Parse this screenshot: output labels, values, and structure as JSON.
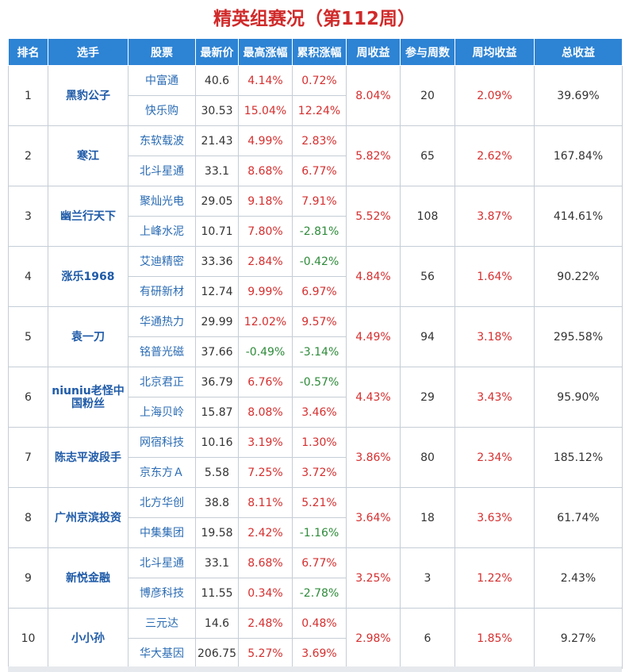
{
  "title": "精英组赛况（第112周）",
  "colors": {
    "header_bg": "#2d83d4",
    "title": "#d02a2a",
    "up": "#d62f2f",
    "down": "#2e8b3a",
    "link": "#2b6cb4"
  },
  "headers": [
    "排名",
    "选手",
    "股票",
    "最新价",
    "最高涨幅",
    "累积涨幅",
    "周收益",
    "参与周数",
    "周均收益",
    "总收益"
  ],
  "rows": [
    {
      "rank": "1",
      "player": "黑豹公子",
      "weekly_return": "8.04%",
      "weeks": "20",
      "avg_weekly": "2.09%",
      "total": "39.69%",
      "stocks": [
        {
          "name": "中富通",
          "price": "40.6",
          "max_gain": "4.14%",
          "cum_gain": "0.72%"
        },
        {
          "name": "快乐购",
          "price": "30.53",
          "max_gain": "15.04%",
          "cum_gain": "12.24%"
        }
      ]
    },
    {
      "rank": "2",
      "player": "寒江",
      "weekly_return": "5.82%",
      "weeks": "65",
      "avg_weekly": "2.62%",
      "total": "167.84%",
      "stocks": [
        {
          "name": "东软载波",
          "price": "21.43",
          "max_gain": "4.99%",
          "cum_gain": "2.83%"
        },
        {
          "name": "北斗星通",
          "price": "33.1",
          "max_gain": "8.68%",
          "cum_gain": "6.77%"
        }
      ]
    },
    {
      "rank": "3",
      "player": "幽兰行天下",
      "weekly_return": "5.52%",
      "weeks": "108",
      "avg_weekly": "3.87%",
      "total": "414.61%",
      "stocks": [
        {
          "name": "聚灿光电",
          "price": "29.05",
          "max_gain": "9.18%",
          "cum_gain": "7.91%"
        },
        {
          "name": "上峰水泥",
          "price": "10.71",
          "max_gain": "7.80%",
          "cum_gain": "-2.81%"
        }
      ]
    },
    {
      "rank": "4",
      "player": "涨乐1968",
      "weekly_return": "4.84%",
      "weeks": "56",
      "avg_weekly": "1.64%",
      "total": "90.22%",
      "stocks": [
        {
          "name": "艾迪精密",
          "price": "33.36",
          "max_gain": "2.84%",
          "cum_gain": "-0.42%"
        },
        {
          "name": "有研新材",
          "price": "12.74",
          "max_gain": "9.99%",
          "cum_gain": "6.97%"
        }
      ]
    },
    {
      "rank": "5",
      "player": "袁一刀",
      "weekly_return": "4.49%",
      "weeks": "94",
      "avg_weekly": "3.18%",
      "total": "295.58%",
      "stocks": [
        {
          "name": "华通热力",
          "price": "29.99",
          "max_gain": "12.02%",
          "cum_gain": "9.57%"
        },
        {
          "name": "铭普光磁",
          "price": "37.66",
          "max_gain": "-0.49%",
          "cum_gain": "-3.14%"
        }
      ]
    },
    {
      "rank": "6",
      "player": "niuniu老怪中国粉丝",
      "weekly_return": "4.43%",
      "weeks": "29",
      "avg_weekly": "3.43%",
      "total": "95.90%",
      "stocks": [
        {
          "name": "北京君正",
          "price": "36.79",
          "max_gain": "6.76%",
          "cum_gain": "-0.57%"
        },
        {
          "name": "上海贝岭",
          "price": "15.87",
          "max_gain": "8.08%",
          "cum_gain": "3.46%"
        }
      ]
    },
    {
      "rank": "7",
      "player": "陈志平波段手",
      "weekly_return": "3.86%",
      "weeks": "80",
      "avg_weekly": "2.34%",
      "total": "185.12%",
      "stocks": [
        {
          "name": "网宿科技",
          "price": "10.16",
          "max_gain": "3.19%",
          "cum_gain": "1.30%"
        },
        {
          "name": "京东方Ａ",
          "price": "5.58",
          "max_gain": "7.25%",
          "cum_gain": "3.72%"
        }
      ]
    },
    {
      "rank": "8",
      "player": "广州京滨投资",
      "weekly_return": "3.64%",
      "weeks": "18",
      "avg_weekly": "3.63%",
      "total": "61.74%",
      "stocks": [
        {
          "name": "北方华创",
          "price": "38.8",
          "max_gain": "8.11%",
          "cum_gain": "5.21%"
        },
        {
          "name": "中集集团",
          "price": "19.58",
          "max_gain": "2.42%",
          "cum_gain": "-1.16%"
        }
      ]
    },
    {
      "rank": "9",
      "player": "新悦金融",
      "weekly_return": "3.25%",
      "weeks": "3",
      "avg_weekly": "1.22%",
      "total": "2.43%",
      "stocks": [
        {
          "name": "北斗星通",
          "price": "33.1",
          "max_gain": "8.68%",
          "cum_gain": "6.77%"
        },
        {
          "name": "博彦科技",
          "price": "11.55",
          "max_gain": "0.34%",
          "cum_gain": "-2.78%"
        }
      ]
    },
    {
      "rank": "10",
      "player": "小小孙",
      "weekly_return": "2.98%",
      "weeks": "6",
      "avg_weekly": "1.85%",
      "total": "9.27%",
      "stocks": [
        {
          "name": "三元达",
          "price": "14.6",
          "max_gain": "2.48%",
          "cum_gain": "0.48%"
        },
        {
          "name": "华大基因",
          "price": "206.75",
          "max_gain": "5.27%",
          "cum_gain": "3.69%"
        }
      ]
    }
  ]
}
